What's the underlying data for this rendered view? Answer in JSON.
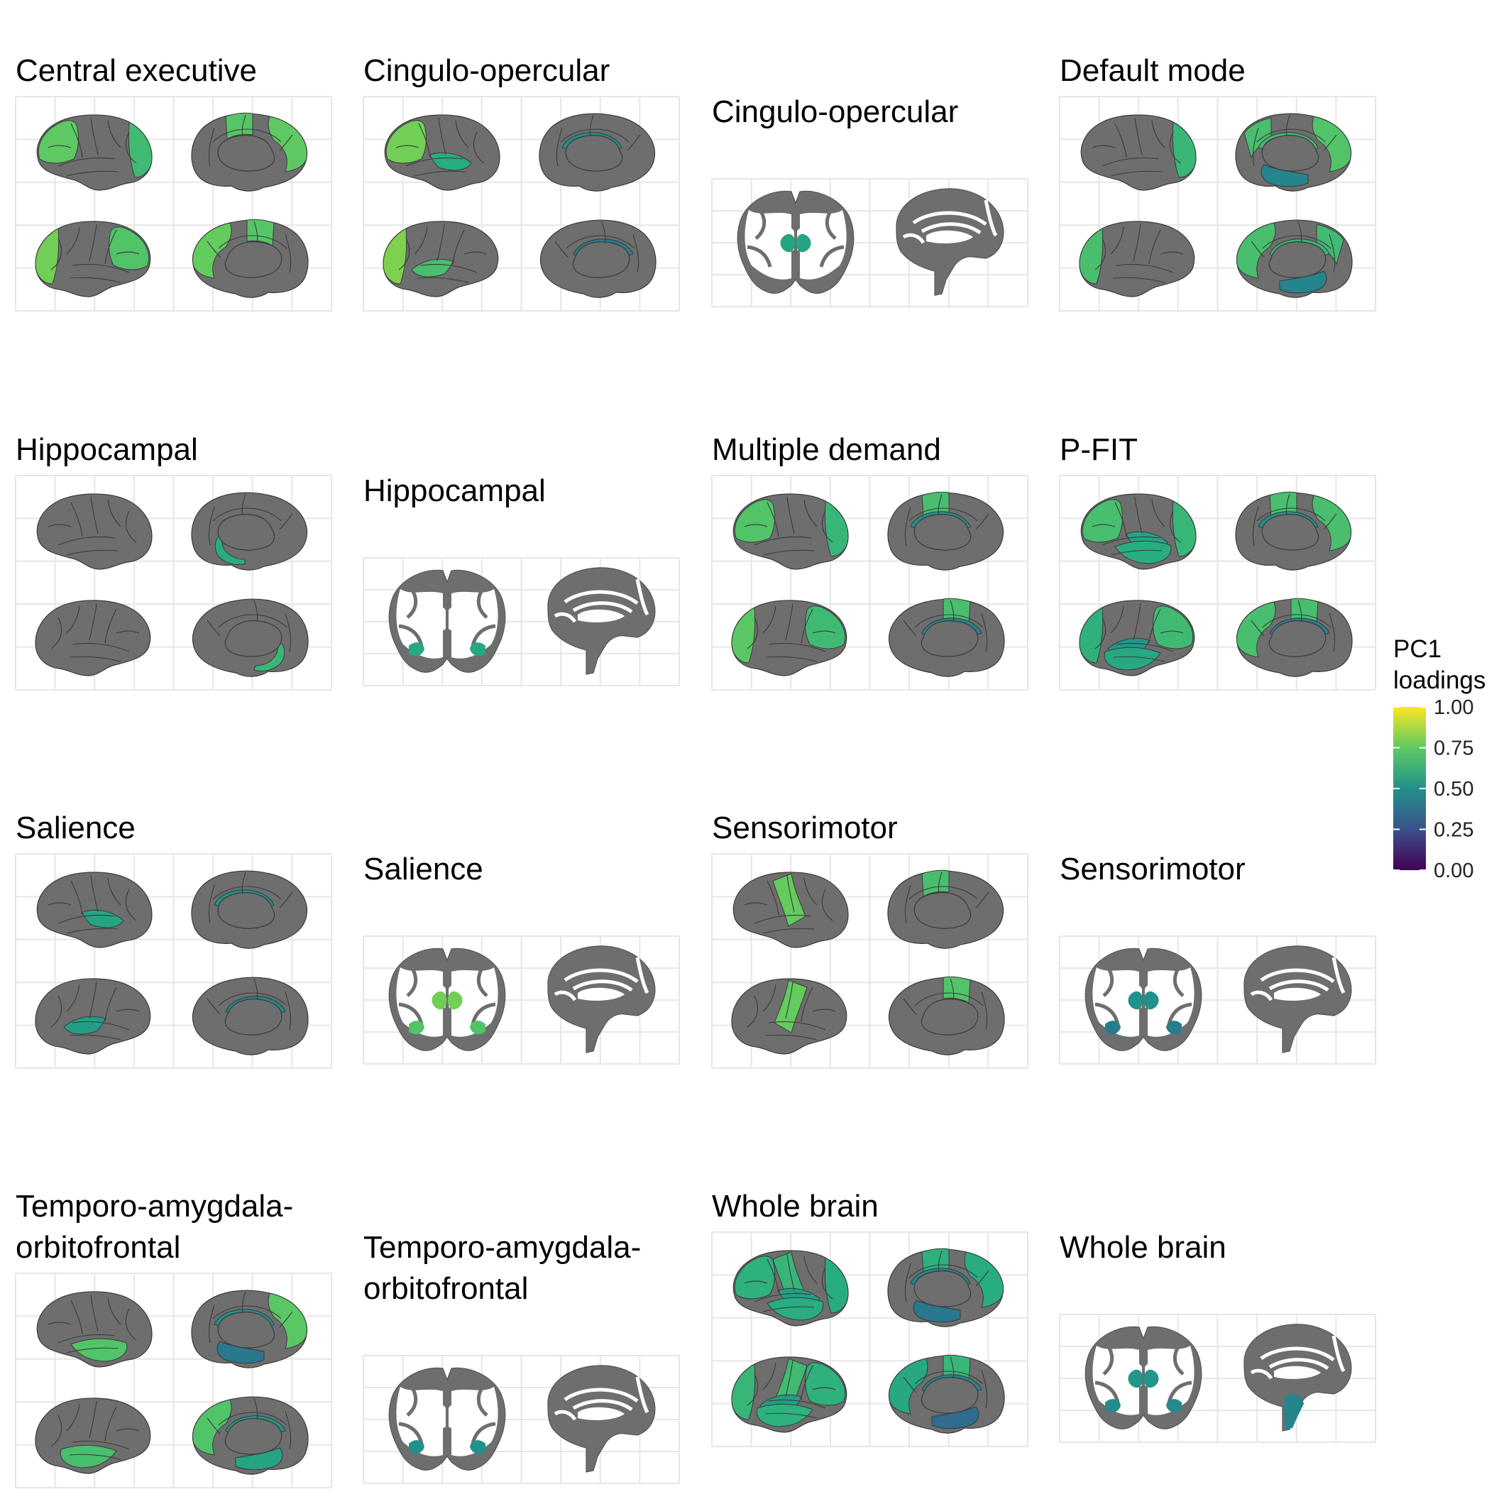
{
  "figure": {
    "panels": [
      {
        "title": [
          "Central executive"
        ],
        "type": "cortical",
        "regions": {
          "ll_occ": 0.68,
          "ll_front": 0.75,
          "rl_occ": 0.78,
          "rl_front": 0.72,
          "lm_par": 0.73,
          "lm_front": 0.75,
          "rm_par": 0.73,
          "rm_front": 0.76
        }
      },
      {
        "title": [
          "Cingulo-opercular"
        ],
        "type": "cortical",
        "regions": {
          "ll_ins": 0.62,
          "ll_front": 0.78,
          "rl_ins": 0.7,
          "rl_occ": 0.8,
          "lm_cing": 0.5,
          "rm_cing": 0.42
        }
      },
      {
        "title": [
          "Cingulo-opercular"
        ],
        "type": "subcortical",
        "regions": {
          "thal": 0.58
        }
      },
      {
        "title": [
          "Default mode"
        ],
        "type": "cortical",
        "regions": {
          "ll_occ": 0.66,
          "rl_occ": 0.7,
          "lm_prec": 0.7,
          "lm_front": 0.72,
          "lm_cing": 0.68,
          "lm_temp": 0.45,
          "rm_prec": 0.68,
          "rm_front": 0.7,
          "rm_cing": 0.66,
          "rm_temp": 0.45
        }
      },
      {
        "title": [
          "Hippocampal"
        ],
        "type": "cortical",
        "regions": {
          "lm_hipp": 0.62,
          "rm_hipp": 0.66
        }
      },
      {
        "title": [
          "Hippocampal"
        ],
        "type": "subcortical",
        "regions": {
          "hipp": 0.6
        }
      },
      {
        "title": [
          "Multiple demand"
        ],
        "type": "cortical",
        "regions": {
          "ll_occ": 0.66,
          "ll_front": 0.72,
          "rl_occ": 0.74,
          "rl_front": 0.68,
          "lm_par": 0.7,
          "lm_cing": 0.5,
          "rm_par": 0.7,
          "rm_cing": 0.45
        }
      },
      {
        "title": [
          "P-FIT"
        ],
        "type": "cortical",
        "regions": {
          "ll_occ": 0.66,
          "ll_front": 0.7,
          "ll_temp": 0.62,
          "ll_ins": 0.58,
          "rl_occ": 0.64,
          "rl_front": 0.68,
          "rl_temp": 0.6,
          "rl_ins": 0.52,
          "lm_par": 0.7,
          "lm_front": 0.7,
          "lm_cing": 0.5,
          "rm_par": 0.7,
          "rm_front": 0.7,
          "rm_cing": 0.42
        }
      },
      {
        "title": [
          "Salience"
        ],
        "type": "cortical",
        "regions": {
          "ll_ins": 0.58,
          "rl_ins": 0.55,
          "lm_cing": 0.5,
          "rm_cing": 0.45
        }
      },
      {
        "title": [
          "Salience"
        ],
        "type": "subcortical",
        "regions": {
          "thal": 0.78,
          "hipp": 0.72
        }
      },
      {
        "title": [
          "Sensorimotor"
        ],
        "type": "cortical",
        "regions": {
          "ll_motor": 0.76,
          "rl_motor": 0.76,
          "lm_par": 0.7,
          "rm_par": 0.72
        }
      },
      {
        "title": [
          "Sensorimotor"
        ],
        "type": "subcortical",
        "regions": {
          "thal": 0.5,
          "hipp": 0.42
        }
      },
      {
        "title": [
          "Temporo-amygdala-",
          "orbitofrontal"
        ],
        "type": "cortical",
        "regions": {
          "ll_temp": 0.72,
          "rl_temp": 0.7,
          "lm_cing": 0.5,
          "lm_front": 0.74,
          "lm_temp": 0.4,
          "rm_cing": 0.52,
          "rm_front": 0.72,
          "rm_temp": 0.58
        }
      },
      {
        "title": [
          "Temporo-amygdala-",
          "orbitofrontal"
        ],
        "type": "subcortical",
        "regions": {
          "hipp": 0.5
        }
      },
      {
        "title": [
          "Whole brain"
        ],
        "type": "cortical",
        "regions": {
          "ll_occ": 0.62,
          "ll_front": 0.64,
          "ll_temp": 0.62,
          "ll_ins": 0.55,
          "ll_motor": 0.66,
          "rl_occ": 0.66,
          "rl_front": 0.64,
          "rl_temp": 0.64,
          "rl_ins": 0.55,
          "rl_motor": 0.68,
          "lm_par": 0.64,
          "lm_front": 0.62,
          "lm_cing": 0.45,
          "lm_temp": 0.4,
          "rm_par": 0.66,
          "rm_front": 0.6,
          "rm_cing": 0.45,
          "rm_temp": 0.35
        }
      },
      {
        "title": [
          "Whole brain"
        ],
        "type": "subcortical",
        "regions": {
          "thal": 0.52,
          "hipp": 0.48,
          "stem": 0.45
        }
      }
    ],
    "legend": {
      "title": [
        "PC1",
        "loadings"
      ],
      "ticks": [
        "1.00",
        "0.75",
        "0.50",
        "0.25",
        "0.00"
      ],
      "range": [
        0,
        1
      ],
      "colormap": "viridis",
      "inactive_color": "#6e6e6e"
    }
  }
}
